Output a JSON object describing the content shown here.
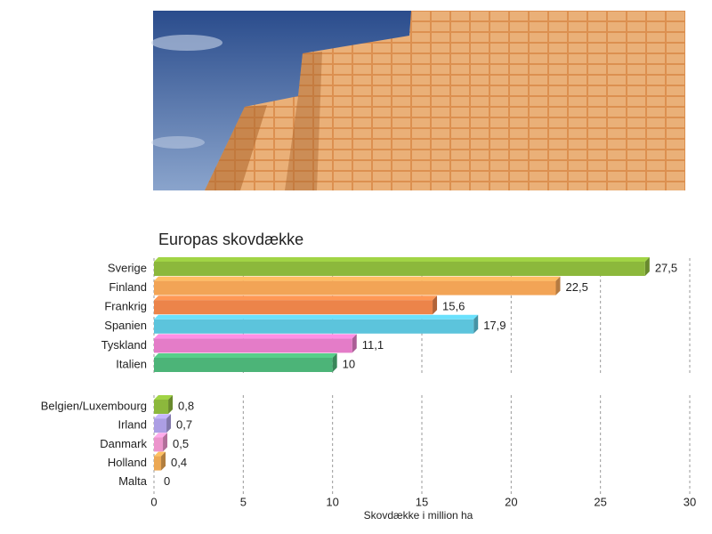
{
  "chart_data": {
    "type": "bar",
    "orientation": "horizontal",
    "title": "Europas skovdække",
    "categories": [
      "Sverige",
      "Finland",
      "Frankrig",
      "Spanien",
      "Tyskland",
      "Italien",
      "Belgien/Luxembourg",
      "Irland",
      "Danmark",
      "Holland",
      "Malta"
    ],
    "values": [
      27.5,
      22.5,
      15.6,
      17.9,
      11.1,
      10,
      0.8,
      0.7,
      0.5,
      0.4,
      0
    ],
    "value_labels": [
      "27,5",
      "22,5",
      "15,6",
      "17,9",
      "11,1",
      "10",
      "0,8",
      "0,7",
      "0,5",
      "0,4",
      "0"
    ],
    "colors": [
      "#8cb83c",
      "#f2a456",
      "#ec844a",
      "#5cc4dc",
      "#e47cc8",
      "#4cb478",
      "#8cb83c",
      "#ac9ee4",
      "#ec94cc",
      "#eca854",
      "#cccccc"
    ],
    "xlim": [
      0,
      30
    ],
    "xticks": [
      0,
      5,
      10,
      15,
      20,
      25,
      30
    ],
    "xlabel": "Skovdække i million ha",
    "grid": true
  }
}
